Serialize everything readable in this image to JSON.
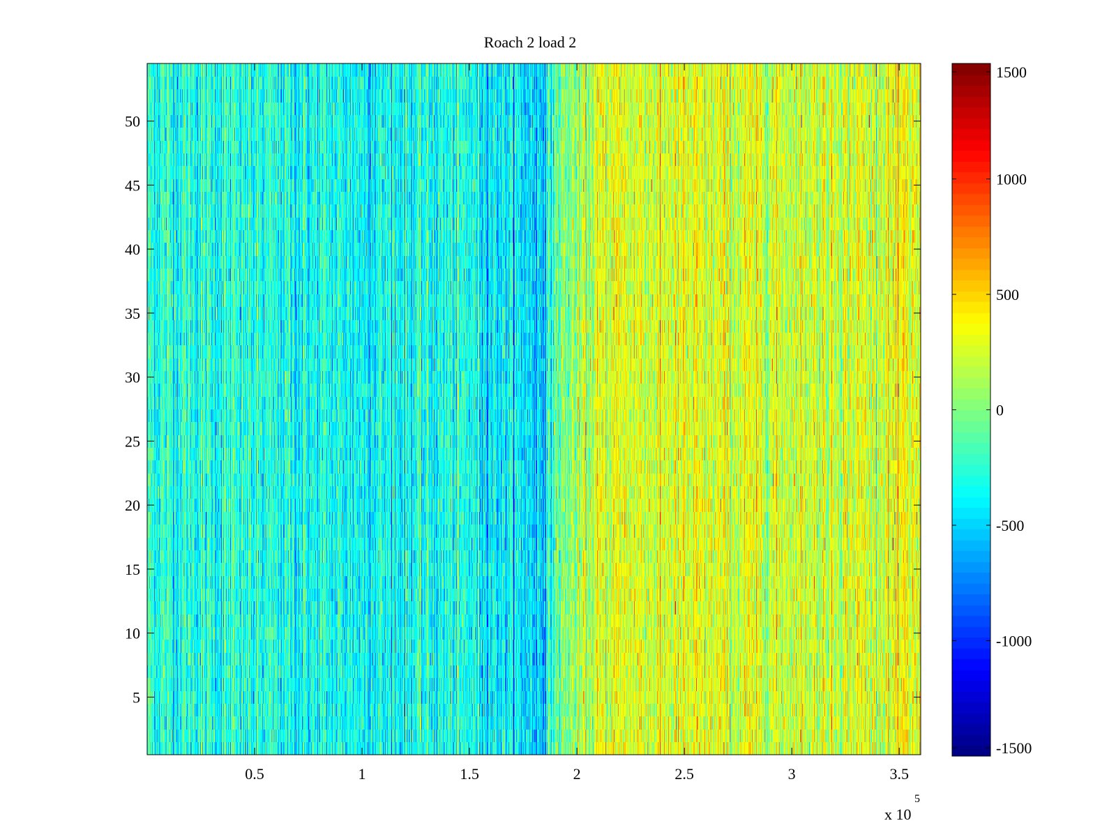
{
  "chart_data": {
    "type": "heatmap",
    "title": "Roach 2 load 2",
    "xlabel": "",
    "ylabel": "",
    "x_exponent_label": "x 10",
    "x_exponent_power": "5",
    "xlim": [
      0,
      3.6
    ],
    "ylim": [
      0.5,
      54.5
    ],
    "x_ticks": [
      0.5,
      1,
      1.5,
      2,
      2.5,
      3,
      3.5
    ],
    "x_tick_labels": [
      "0.5",
      "1",
      "1.5",
      "2",
      "2.5",
      "3",
      "3.5"
    ],
    "y_ticks": [
      5,
      10,
      15,
      20,
      25,
      30,
      35,
      40,
      45,
      50
    ],
    "y_tick_labels": [
      "5",
      "10",
      "15",
      "20",
      "25",
      "30",
      "35",
      "40",
      "45",
      "50"
    ],
    "rows": 54,
    "colorbar": {
      "colormap": "jet",
      "clim": [
        -1500,
        1500
      ],
      "ticks": [
        1500,
        1000,
        500,
        0,
        -500,
        -1000,
        -1500
      ],
      "tick_labels": [
        "1500",
        "1000",
        "500",
        "0",
        "-500",
        "-1000",
        "-1500"
      ]
    },
    "value_profile": {
      "description_points_x": [
        0,
        0.8,
        1.5,
        1.85,
        1.9,
        2.15,
        2.5,
        3.0,
        3.6
      ],
      "mean_values": [
        -250,
        -350,
        -330,
        -500,
        -100,
        300,
        250,
        250,
        280
      ],
      "noise_amplitude": 300,
      "transition_x": 1.9
    },
    "grid": false
  }
}
